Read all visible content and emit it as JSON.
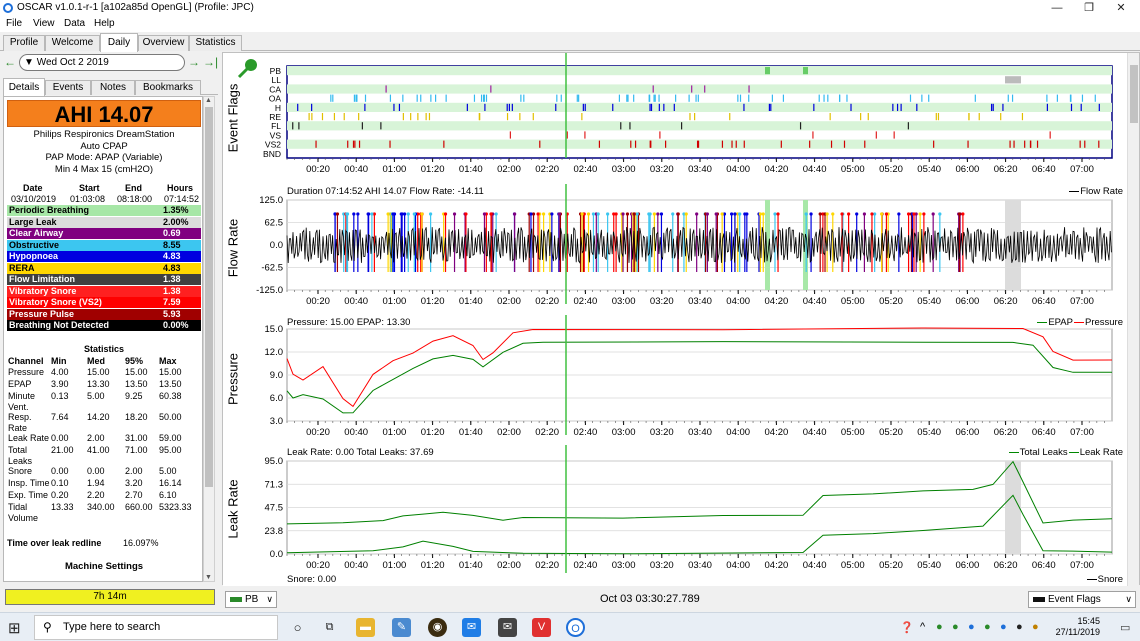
{
  "window": {
    "title": "OSCAR v1.0.1-r-1 [a102a85d OpenGL] (Profile: JPC)",
    "minimize": "—",
    "maximize": "❐",
    "close": "✕"
  },
  "menu": [
    "File",
    "View",
    "Data",
    "Help"
  ],
  "main_tabs": [
    {
      "label": "Profile",
      "active": false
    },
    {
      "label": "Welcome",
      "active": false
    },
    {
      "label": "Daily",
      "active": true
    },
    {
      "label": "Overview",
      "active": false
    },
    {
      "label": "Statistics",
      "active": false
    }
  ],
  "date_nav": {
    "prev": "←",
    "date": "Wed Oct 2 2019",
    "next": "→",
    "last": "→|"
  },
  "side_tabs": [
    {
      "label": "Details",
      "active": true
    },
    {
      "label": "Events",
      "active": false
    },
    {
      "label": "Notes",
      "active": false
    },
    {
      "label": "Bookmarks",
      "active": false
    }
  ],
  "summary": {
    "ahi": "AHI 14.07",
    "machine_lines": [
      "Philips Respironics DreamStation",
      "Auto CPAP",
      "PAP Mode: APAP (Variable)",
      "Min 4 Max 15 (cmH2O)"
    ],
    "session_headers": [
      "Date",
      "Start",
      "End",
      "Hours"
    ],
    "session_values": [
      "03/10/2019",
      "01:03:08",
      "08:18:00",
      "07:14:52"
    ]
  },
  "events": [
    {
      "name": "Periodic Breathing",
      "value": "1.35%",
      "bg": "#a7e7a7",
      "fg": "#000000"
    },
    {
      "name": "Large Leak",
      "value": "2.00%",
      "bg": "#dcdcdc",
      "fg": "#000000"
    },
    {
      "name": "Clear Airway",
      "value": "0.69",
      "bg": "#800080",
      "fg": "#ffffff"
    },
    {
      "name": "Obstructive",
      "value": "8.55",
      "bg": "#3cc6f0",
      "fg": "#000000"
    },
    {
      "name": "Hypopnoea",
      "value": "4.83",
      "bg": "#0000e0",
      "fg": "#ffffff"
    },
    {
      "name": "RERA",
      "value": "4.83",
      "bg": "#ffd700",
      "fg": "#000000"
    },
    {
      "name": "Flow Limitation",
      "value": "1.38",
      "bg": "#404040",
      "fg": "#ffffff"
    },
    {
      "name": "Vibratory Snore",
      "value": "1.38",
      "bg": "#ff2020",
      "fg": "#ffffff"
    },
    {
      "name": "Vibratory Snore (VS2)",
      "value": "7.59",
      "bg": "#ff0000",
      "fg": "#ffffff"
    },
    {
      "name": "Pressure Pulse",
      "value": "5.93",
      "bg": "#a00000",
      "fg": "#ffffff"
    },
    {
      "name": "Breathing Not Detected",
      "value": "0.00%",
      "bg": "#000000",
      "fg": "#ffffff"
    }
  ],
  "statistics": {
    "title": "Statistics",
    "headers": [
      "Channel",
      "Min",
      "Med",
      "95%",
      "Max"
    ],
    "rows": [
      {
        "ch": "Pressure",
        "min": "4.00",
        "med": "15.00",
        "p95": "15.00",
        "max": "15.00"
      },
      {
        "ch": "EPAP",
        "min": "3.90",
        "med": "13.30",
        "p95": "13.50",
        "max": "13.50"
      },
      {
        "ch": "Minute",
        "ch2": "Vent.",
        "min": "0.13",
        "med": "5.00",
        "p95": "9.25",
        "max": "60.38"
      },
      {
        "ch": "Resp.",
        "ch2": "Rate",
        "min": "7.64",
        "med": "14.20",
        "p95": "18.20",
        "max": "50.00"
      },
      {
        "ch": "Leak Rate",
        "min": "0.00",
        "med": "2.00",
        "p95": "31.00",
        "max": "59.00"
      },
      {
        "ch": "Total",
        "ch2": "Leaks",
        "min": "21.00",
        "med": "41.00",
        "p95": "71.00",
        "max": "95.00"
      },
      {
        "ch": "Snore",
        "min": "0.00",
        "med": "0.00",
        "p95": "2.00",
        "max": "5.00"
      },
      {
        "ch": "Insp. Time",
        "min": "0.10",
        "med": "1.94",
        "p95": "3.20",
        "max": "16.14"
      },
      {
        "ch": "Exp. Time",
        "min": "0.20",
        "med": "2.20",
        "p95": "2.70",
        "max": "6.10"
      },
      {
        "ch": "Tidal",
        "ch2": "Volume",
        "min": "13.33",
        "med": "340.00",
        "p95": "660.00",
        "max": "5323.33"
      }
    ],
    "leak_redline_label": "Time over leak redline",
    "leak_redline_value": "16.097%",
    "machine_settings": "Machine Settings"
  },
  "total_time": "7h 14m",
  "time_axis": [
    "00:20",
    "00:40",
    "01:00",
    "01:20",
    "01:40",
    "02:00",
    "02:20",
    "02:40",
    "03:00",
    "03:20",
    "03:40",
    "04:00",
    "04:20",
    "04:40",
    "05:00",
    "05:20",
    "05:40",
    "06:00",
    "06:20",
    "06:40",
    "07:00"
  ],
  "event_flags": {
    "title": "Event Flags",
    "channels": [
      "PB",
      "LL",
      "CA",
      "OA",
      "H",
      "RE",
      "FL",
      "VS",
      "VS2",
      "BND"
    ]
  },
  "flow_rate": {
    "title": "Flow Rate",
    "info": "Duration 07:14:52 AHI 14.07 Flow Rate: -14.11",
    "legend": "Flow Rate",
    "yticks": [
      "125.0",
      "62.5",
      "0.0",
      "-62.5",
      "-125.0"
    ]
  },
  "pressure": {
    "title": "Pressure",
    "info": "Pressure: 15.00 EPAP: 13.30",
    "legend_epap": "EPAP",
    "legend_pressure": "Pressure",
    "yticks": [
      "15.0",
      "12.0",
      "9.0",
      "6.0",
      "3.0"
    ]
  },
  "leak_rate": {
    "title": "Leak Rate",
    "info": "Leak Rate: 0.00 Total Leaks: 37.69",
    "legend_total": "Total Leaks",
    "legend_leak": "Leak Rate",
    "yticks": [
      "95.0",
      "71.3",
      "47.5",
      "23.8",
      "0.0"
    ]
  },
  "snore": {
    "info": "Snore: 0.00",
    "legend": "Snore"
  },
  "bottom": {
    "left_combo": "PB",
    "time": "Oct 03 03:30:27.789",
    "right_combo": "Event Flags"
  },
  "taskbar": {
    "search_placeholder": "Type here to search",
    "time": "15:45",
    "date": "27/11/2019"
  },
  "colors": {
    "accent_orange": "#f47f1c",
    "flow_line": "#000000",
    "pressure_line": "#ff0000",
    "epap_line": "#008000",
    "cursor": "#40c040"
  }
}
